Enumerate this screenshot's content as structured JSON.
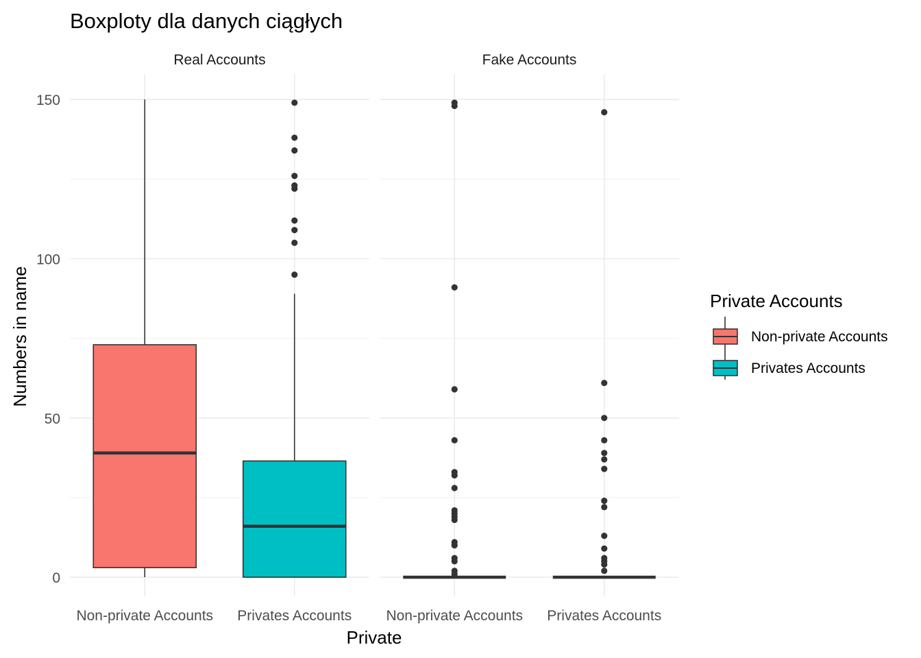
{
  "chart_data": {
    "type": "box",
    "title": "Boxploty dla danych ciągłych",
    "xlabel": "Private",
    "ylabel": "Numbers in name",
    "ylim": [
      -6,
      158
    ],
    "yticks": [
      0,
      50,
      100,
      150
    ],
    "grid": true,
    "categories": [
      "Non-private Accounts",
      "Privates Accounts"
    ],
    "colors": {
      "Non-private Accounts": "#F8766D",
      "Privates Accounts": "#00BFC4"
    },
    "legend": {
      "title": "Private Accounts",
      "position": "right",
      "items": [
        "Non-private Accounts",
        "Privates Accounts"
      ]
    },
    "panels": [
      {
        "label": "Real Accounts",
        "boxes": [
          {
            "category": "Non-private Accounts",
            "min": 0,
            "q1": 3,
            "median": 39,
            "q3": 73,
            "max": 150,
            "outliers": []
          },
          {
            "category": "Privates Accounts",
            "min": 0,
            "q1": 0,
            "median": 16,
            "q3": 36.5,
            "max": 89,
            "outliers": [
              95,
              105,
              109,
              112,
              122,
              123,
              126,
              134,
              138,
              149
            ]
          }
        ]
      },
      {
        "label": "Fake Accounts",
        "boxes": [
          {
            "category": "Non-private Accounts",
            "min": 0,
            "q1": 0,
            "median": 0,
            "q3": 0,
            "max": 0,
            "outliers": [
              1,
              2,
              5,
              6,
              10,
              11,
              18,
              19,
              20,
              21,
              28,
              32,
              33,
              43,
              59,
              91,
              148,
              149
            ]
          },
          {
            "category": "Privates Accounts",
            "min": 0,
            "q1": 0,
            "median": 0,
            "q3": 0,
            "max": 0,
            "outliers": [
              2,
              4,
              5,
              6,
              9,
              13,
              22,
              24,
              34,
              37,
              39,
              43,
              50,
              61,
              146
            ]
          }
        ]
      }
    ]
  }
}
